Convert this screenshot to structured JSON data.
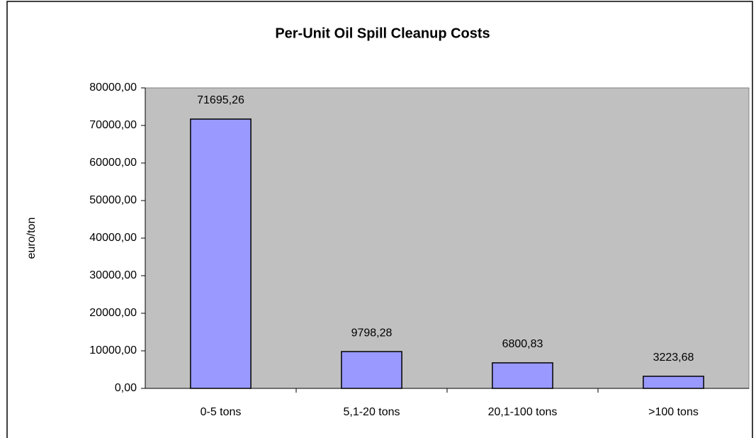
{
  "chart_data": {
    "type": "bar",
    "title": "Per-Unit Oil Spill Cleanup Costs",
    "y_label": "euro/ton",
    "categories": [
      "0-5 tons",
      "5,1-20 tons",
      "20,1-100 tons",
      ">100 tons"
    ],
    "values": [
      71695.26,
      9798.28,
      6800.83,
      3223.68
    ],
    "value_labels": [
      "71695,26",
      "9798,28",
      "6800,83",
      "3223,68"
    ],
    "color": "#9999ff",
    "ylim": [
      0,
      80000
    ],
    "yticks": [
      {
        "value": 0,
        "label": "0,00"
      },
      {
        "value": 10000,
        "label": "10000,00"
      },
      {
        "value": 20000,
        "label": "20000,00"
      },
      {
        "value": 30000,
        "label": "30000,00"
      },
      {
        "value": 40000,
        "label": "40000,00"
      },
      {
        "value": 50000,
        "label": "50000,00"
      },
      {
        "value": 60000,
        "label": "60000,00"
      },
      {
        "value": 70000,
        "label": "70000,00"
      },
      {
        "value": 80000,
        "label": "80000,00"
      }
    ],
    "grid": false
  }
}
